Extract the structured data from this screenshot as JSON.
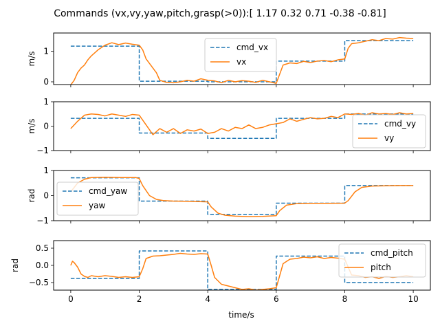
{
  "figure": {
    "title": "Commands (vx,vy,yaw,pitch,grasp(>0)):[ 1.17  0.32  0.71 -0.38 -0.81]",
    "xlabel": "time/s",
    "cmd_color": "#1f77b4",
    "actual_color": "#ff7f0e"
  },
  "chart_data": [
    {
      "type": "line",
      "ylabel": "m/s",
      "xlim": [
        -0.5,
        10.5
      ],
      "ylim": [
        -0.09,
        1.6
      ],
      "xticks": [
        0,
        2,
        4,
        6,
        8,
        10
      ],
      "yticks": [
        0,
        1
      ],
      "xtick_labels_visible": false,
      "legend": "top-center",
      "series": [
        {
          "name": "cmd_vx",
          "style": "dashed",
          "x": [
            0,
            2,
            2,
            4,
            4,
            6,
            6,
            8,
            8,
            10
          ],
          "y": [
            1.17,
            1.17,
            0.02,
            0.02,
            0.0,
            0.0,
            0.68,
            0.68,
            1.35,
            1.35
          ]
        },
        {
          "name": "vx",
          "style": "solid",
          "x": [
            0,
            0.1,
            0.2,
            0.3,
            0.4,
            0.5,
            0.6,
            0.8,
            1.0,
            1.2,
            1.4,
            1.6,
            1.8,
            2.0,
            2.1,
            2.2,
            2.4,
            2.5,
            2.6,
            2.8,
            3.0,
            3.2,
            3.4,
            3.6,
            3.8,
            4.0,
            4.2,
            4.4,
            4.6,
            4.8,
            5.0,
            5.2,
            5.4,
            5.6,
            5.8,
            6.0,
            6.1,
            6.2,
            6.4,
            6.6,
            6.8,
            7.0,
            7.2,
            7.4,
            7.6,
            7.8,
            8.0,
            8.1,
            8.2,
            8.4,
            8.6,
            8.8,
            9.0,
            9.2,
            9.4,
            9.6,
            9.8,
            10.0
          ],
          "y": [
            -0.1,
            0.05,
            0.3,
            0.45,
            0.55,
            0.72,
            0.85,
            1.05,
            1.2,
            1.28,
            1.22,
            1.27,
            1.23,
            1.2,
            1.05,
            0.75,
            0.45,
            0.3,
            0.05,
            -0.02,
            -0.03,
            0.0,
            0.05,
            0.02,
            0.1,
            0.05,
            0.03,
            -0.03,
            0.05,
            0.0,
            0.04,
            0.02,
            -0.02,
            0.05,
            0.0,
            -0.05,
            0.25,
            0.55,
            0.62,
            0.6,
            0.67,
            0.63,
            0.68,
            0.7,
            0.66,
            0.72,
            0.75,
            1.1,
            1.25,
            1.28,
            1.33,
            1.38,
            1.35,
            1.42,
            1.4,
            1.45,
            1.43,
            1.42
          ]
        }
      ]
    },
    {
      "type": "line",
      "ylabel": "m/s",
      "xlim": [
        -0.5,
        10.5
      ],
      "ylim": [
        -1,
        1
      ],
      "xticks": [
        0,
        2,
        4,
        6,
        8,
        10
      ],
      "yticks": [
        -1,
        0,
        1
      ],
      "xtick_labels_visible": false,
      "legend": "right",
      "series": [
        {
          "name": "cmd_vy",
          "style": "dashed",
          "x": [
            0,
            2,
            2,
            4,
            4,
            6,
            6,
            8,
            8,
            10
          ],
          "y": [
            0.32,
            0.32,
            -0.28,
            -0.28,
            -0.5,
            -0.5,
            0.32,
            0.32,
            0.5,
            0.5
          ]
        },
        {
          "name": "vy",
          "style": "solid",
          "x": [
            0,
            0.1,
            0.2,
            0.4,
            0.6,
            0.8,
            1.0,
            1.2,
            1.4,
            1.6,
            1.8,
            2.0,
            2.2,
            2.4,
            2.6,
            2.8,
            3.0,
            3.2,
            3.4,
            3.6,
            3.8,
            4.0,
            4.2,
            4.4,
            4.6,
            4.8,
            5.0,
            5.2,
            5.4,
            5.6,
            5.8,
            6.0,
            6.2,
            6.4,
            6.6,
            6.8,
            7.0,
            7.2,
            7.4,
            7.6,
            7.8,
            8.0,
            8.2,
            8.4,
            8.6,
            8.8,
            9.0,
            9.2,
            9.4,
            9.6,
            9.8,
            10.0
          ],
          "y": [
            -0.1,
            0.05,
            0.2,
            0.45,
            0.5,
            0.48,
            0.42,
            0.5,
            0.45,
            0.4,
            0.48,
            0.45,
            0.05,
            -0.35,
            -0.1,
            -0.25,
            -0.1,
            -0.3,
            -0.15,
            -0.2,
            -0.12,
            -0.3,
            -0.25,
            -0.1,
            -0.2,
            -0.05,
            -0.1,
            0.05,
            -0.1,
            -0.05,
            0.05,
            0.1,
            0.15,
            0.3,
            0.2,
            0.28,
            0.35,
            0.3,
            0.32,
            0.4,
            0.35,
            0.5,
            0.48,
            0.52,
            0.45,
            0.55,
            0.5,
            0.52,
            0.48,
            0.55,
            0.5,
            0.52
          ]
        }
      ]
    },
    {
      "type": "line",
      "ylabel": "rad",
      "xlim": [
        -0.5,
        10.5
      ],
      "ylim": [
        -1,
        1
      ],
      "xticks": [
        0,
        2,
        4,
        6,
        8,
        10
      ],
      "yticks": [
        -1,
        0,
        1
      ],
      "xtick_labels_visible": false,
      "legend": "left",
      "series": [
        {
          "name": "cmd_yaw",
          "style": "dashed",
          "x": [
            0,
            2,
            2,
            4,
            4,
            6,
            6,
            8,
            8,
            10
          ],
          "y": [
            0.71,
            0.71,
            -0.22,
            -0.22,
            -0.75,
            -0.75,
            -0.3,
            -0.3,
            0.4,
            0.4
          ]
        },
        {
          "name": "yaw",
          "style": "solid",
          "x": [
            0,
            0.2,
            0.4,
            0.6,
            1.0,
            1.5,
            1.9,
            2.0,
            2.1,
            2.3,
            2.5,
            2.7,
            3.0,
            3.5,
            4.0,
            4.1,
            4.3,
            4.5,
            4.8,
            5.2,
            5.6,
            6.0,
            6.1,
            6.3,
            6.6,
            7.0,
            7.5,
            8.0,
            8.1,
            8.3,
            8.5,
            8.8,
            9.2,
            9.6,
            10.0
          ],
          "y": [
            0.15,
            0.5,
            0.65,
            0.72,
            0.73,
            0.72,
            0.72,
            0.68,
            0.4,
            0.0,
            -0.15,
            -0.2,
            -0.22,
            -0.23,
            -0.25,
            -0.45,
            -0.7,
            -0.78,
            -0.82,
            -0.84,
            -0.83,
            -0.8,
            -0.6,
            -0.38,
            -0.32,
            -0.31,
            -0.31,
            -0.3,
            -0.2,
            0.15,
            0.33,
            0.38,
            0.39,
            0.4,
            0.4
          ]
        }
      ]
    },
    {
      "type": "line",
      "ylabel": "rad",
      "xlim": [
        -0.5,
        10.5
      ],
      "ylim": [
        -0.72,
        0.72
      ],
      "xticks": [
        0,
        2,
        4,
        6,
        8,
        10
      ],
      "yticks": [
        -0.5,
        0.0,
        0.5
      ],
      "ytick_labels": [
        "−0.5",
        "0.0",
        "0.5"
      ],
      "xtick_labels_visible": true,
      "legend": "top-right",
      "series": [
        {
          "name": "cmd_pitch",
          "style": "dashed",
          "x": [
            0,
            2,
            2,
            4,
            4,
            6,
            6,
            8,
            8,
            10
          ],
          "y": [
            -0.38,
            -0.38,
            0.42,
            0.42,
            -0.7,
            -0.7,
            0.27,
            0.27,
            -0.5,
            -0.5
          ]
        },
        {
          "name": "pitch",
          "style": "solid",
          "x": [
            0,
            0.05,
            0.1,
            0.2,
            0.3,
            0.4,
            0.5,
            0.6,
            0.8,
            1.0,
            1.2,
            1.4,
            1.6,
            1.8,
            2.0,
            2.1,
            2.2,
            2.4,
            2.6,
            2.8,
            3.0,
            3.2,
            3.4,
            3.6,
            3.8,
            4.0,
            4.1,
            4.2,
            4.4,
            4.6,
            4.8,
            5.0,
            5.2,
            5.4,
            5.6,
            5.8,
            6.0,
            6.1,
            6.2,
            6.4,
            6.6,
            6.8,
            7.0,
            7.2,
            7.4,
            7.6,
            7.8,
            8.0,
            8.1,
            8.2,
            8.4,
            8.6,
            8.8,
            9.0,
            9.2,
            9.4,
            9.6,
            9.8,
            10.0
          ],
          "y": [
            0.0,
            0.12,
            0.08,
            -0.05,
            -0.25,
            -0.32,
            -0.35,
            -0.3,
            -0.33,
            -0.3,
            -0.32,
            -0.35,
            -0.33,
            -0.35,
            -0.33,
            -0.1,
            0.2,
            0.27,
            0.28,
            0.3,
            0.32,
            0.35,
            0.33,
            0.32,
            0.34,
            0.33,
            0.0,
            -0.35,
            -0.55,
            -0.6,
            -0.65,
            -0.7,
            -0.68,
            -0.72,
            -0.7,
            -0.68,
            -0.65,
            -0.3,
            0.05,
            0.18,
            0.2,
            0.24,
            0.22,
            0.25,
            0.2,
            0.23,
            0.21,
            0.18,
            -0.05,
            -0.28,
            -0.3,
            -0.35,
            -0.33,
            -0.38,
            -0.32,
            -0.35,
            -0.33,
            -0.3,
            -0.33
          ]
        }
      ]
    }
  ]
}
